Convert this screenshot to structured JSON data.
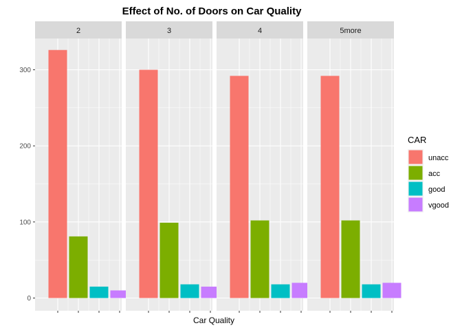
{
  "chart_data": {
    "type": "bar",
    "title": "Effect of No. of Doors on Car Quality",
    "xlabel": "Car Quality",
    "ylabel": "",
    "ylim": [
      0,
      335
    ],
    "yticks": [
      0,
      100,
      200,
      300
    ],
    "facets": [
      "2",
      "3",
      "4",
      "5more"
    ],
    "categories": [
      "unacc",
      "acc",
      "good",
      "vgood"
    ],
    "values": [
      [
        326,
        81,
        15,
        10
      ],
      [
        300,
        99,
        18,
        15
      ],
      [
        292,
        102,
        18,
        20
      ],
      [
        292,
        102,
        18,
        20
      ]
    ],
    "grid": true,
    "legend": {
      "title": "CAR",
      "position": "right",
      "entries": [
        "unacc",
        "acc",
        "good",
        "vgood"
      ]
    },
    "colors": {
      "unacc": "#F8766D",
      "acc": "#7CAE00",
      "good": "#00BFC4",
      "vgood": "#C77CFF",
      "panel_bg": "#EBEBEB",
      "strip_bg": "#D9D9D9",
      "grid": "#FFFFFF"
    }
  }
}
